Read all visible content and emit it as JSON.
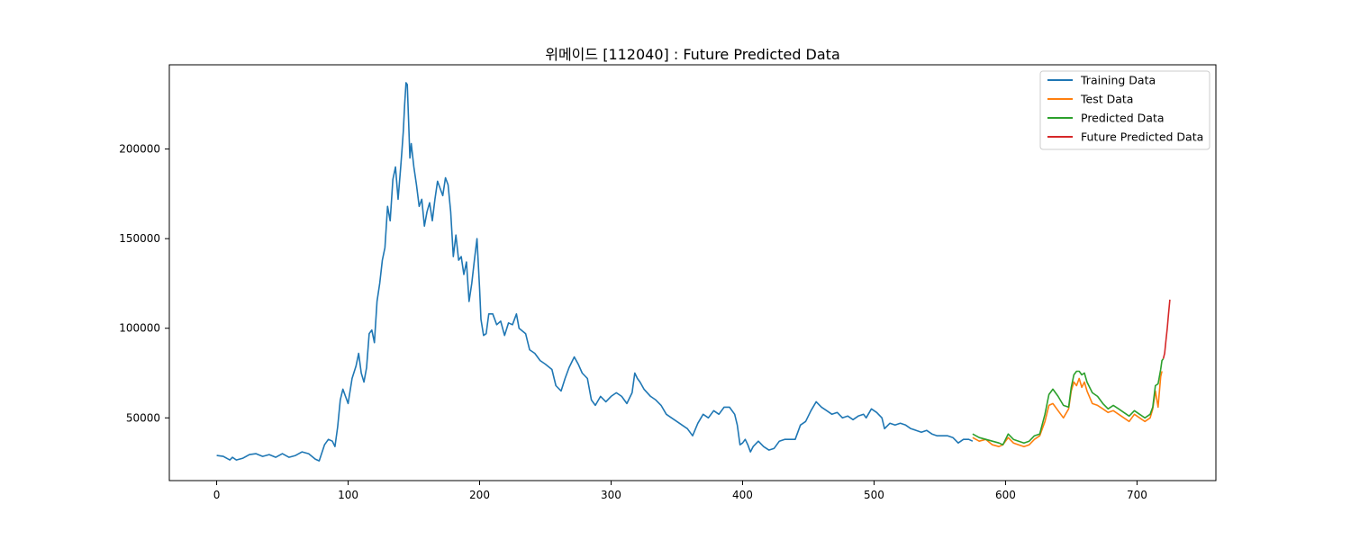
{
  "chart_data": {
    "type": "line",
    "title": "위메이드 [112040] : Future Predicted Data",
    "xlabel": "",
    "ylabel": "",
    "xlim": [
      -36,
      760
    ],
    "ylim": [
      15000,
      247000
    ],
    "x_ticks": [
      0,
      100,
      200,
      300,
      400,
      500,
      600,
      700
    ],
    "y_ticks": [
      50000,
      100000,
      150000,
      200000
    ],
    "grid": false,
    "legend_position": "upper right",
    "series": [
      {
        "name": "Training Data",
        "color": "#1f77b4",
        "points": [
          [
            0,
            29000
          ],
          [
            5,
            28500
          ],
          [
            10,
            26500
          ],
          [
            12,
            28000
          ],
          [
            15,
            26500
          ],
          [
            20,
            27500
          ],
          [
            25,
            29500
          ],
          [
            30,
            30000
          ],
          [
            35,
            28500
          ],
          [
            40,
            29500
          ],
          [
            45,
            28000
          ],
          [
            50,
            30000
          ],
          [
            55,
            28000
          ],
          [
            60,
            29000
          ],
          [
            65,
            31000
          ],
          [
            70,
            30000
          ],
          [
            75,
            27000
          ],
          [
            78,
            26000
          ],
          [
            82,
            35000
          ],
          [
            85,
            38000
          ],
          [
            88,
            37000
          ],
          [
            90,
            34000
          ],
          [
            92,
            45000
          ],
          [
            94,
            60000
          ],
          [
            96,
            66000
          ],
          [
            98,
            62000
          ],
          [
            100,
            58000
          ],
          [
            103,
            72000
          ],
          [
            106,
            79000
          ],
          [
            108,
            86000
          ],
          [
            110,
            75000
          ],
          [
            112,
            70000
          ],
          [
            114,
            78000
          ],
          [
            116,
            97000
          ],
          [
            118,
            99000
          ],
          [
            120,
            92000
          ],
          [
            122,
            115000
          ],
          [
            124,
            125000
          ],
          [
            126,
            138000
          ],
          [
            128,
            145000
          ],
          [
            130,
            168000
          ],
          [
            132,
            160000
          ],
          [
            134,
            183000
          ],
          [
            136,
            190000
          ],
          [
            138,
            172000
          ],
          [
            140,
            190000
          ],
          [
            141,
            200000
          ],
          [
            142,
            210000
          ],
          [
            143,
            225000
          ],
          [
            144,
            237000
          ],
          [
            145,
            236000
          ],
          [
            146,
            215000
          ],
          [
            147,
            195000
          ],
          [
            148,
            203000
          ],
          [
            150,
            190000
          ],
          [
            152,
            180000
          ],
          [
            154,
            168000
          ],
          [
            156,
            172000
          ],
          [
            158,
            157000
          ],
          [
            160,
            165000
          ],
          [
            162,
            170000
          ],
          [
            164,
            160000
          ],
          [
            166,
            172000
          ],
          [
            168,
            182000
          ],
          [
            170,
            178000
          ],
          [
            172,
            174000
          ],
          [
            174,
            184000
          ],
          [
            176,
            180000
          ],
          [
            178,
            165000
          ],
          [
            180,
            140000
          ],
          [
            182,
            152000
          ],
          [
            184,
            138000
          ],
          [
            186,
            140000
          ],
          [
            188,
            130000
          ],
          [
            190,
            137000
          ],
          [
            192,
            115000
          ],
          [
            194,
            125000
          ],
          [
            196,
            138000
          ],
          [
            198,
            150000
          ],
          [
            200,
            122000
          ],
          [
            201,
            105000
          ],
          [
            203,
            96000
          ],
          [
            205,
            97000
          ],
          [
            207,
            108000
          ],
          [
            210,
            108000
          ],
          [
            213,
            102000
          ],
          [
            216,
            104000
          ],
          [
            219,
            96000
          ],
          [
            222,
            103000
          ],
          [
            225,
            102000
          ],
          [
            228,
            108000
          ],
          [
            230,
            100000
          ],
          [
            235,
            97000
          ],
          [
            238,
            88000
          ],
          [
            242,
            86000
          ],
          [
            246,
            82000
          ],
          [
            250,
            80000
          ],
          [
            255,
            77000
          ],
          [
            258,
            68000
          ],
          [
            262,
            65000
          ],
          [
            265,
            72000
          ],
          [
            268,
            78000
          ],
          [
            272,
            84000
          ],
          [
            275,
            80000
          ],
          [
            278,
            75000
          ],
          [
            282,
            72000
          ],
          [
            285,
            60000
          ],
          [
            288,
            57000
          ],
          [
            292,
            62000
          ],
          [
            296,
            59000
          ],
          [
            300,
            62000
          ],
          [
            304,
            64000
          ],
          [
            308,
            62000
          ],
          [
            312,
            58000
          ],
          [
            316,
            64000
          ],
          [
            318,
            75000
          ],
          [
            320,
            72000
          ],
          [
            322,
            70000
          ],
          [
            325,
            66000
          ],
          [
            330,
            62000
          ],
          [
            334,
            60000
          ],
          [
            338,
            57000
          ],
          [
            342,
            52000
          ],
          [
            346,
            50000
          ],
          [
            350,
            48000
          ],
          [
            354,
            46000
          ],
          [
            358,
            44000
          ],
          [
            362,
            40000
          ],
          [
            366,
            47000
          ],
          [
            370,
            52000
          ],
          [
            374,
            50000
          ],
          [
            378,
            54000
          ],
          [
            382,
            52000
          ],
          [
            386,
            56000
          ],
          [
            390,
            56000
          ],
          [
            394,
            52000
          ],
          [
            396,
            46000
          ],
          [
            398,
            35000
          ],
          [
            400,
            36000
          ],
          [
            402,
            38000
          ],
          [
            404,
            35000
          ],
          [
            406,
            31000
          ],
          [
            408,
            34000
          ],
          [
            412,
            37000
          ],
          [
            416,
            34000
          ],
          [
            420,
            32000
          ],
          [
            424,
            33000
          ],
          [
            428,
            37000
          ],
          [
            432,
            38000
          ],
          [
            436,
            38000
          ],
          [
            440,
            38000
          ],
          [
            444,
            46000
          ],
          [
            448,
            48000
          ],
          [
            452,
            54000
          ],
          [
            456,
            59000
          ],
          [
            460,
            56000
          ],
          [
            464,
            54000
          ],
          [
            468,
            52000
          ],
          [
            472,
            53000
          ],
          [
            476,
            50000
          ],
          [
            480,
            51000
          ],
          [
            484,
            49000
          ],
          [
            488,
            51000
          ],
          [
            492,
            52000
          ],
          [
            494,
            50000
          ],
          [
            498,
            55000
          ],
          [
            502,
            53000
          ],
          [
            506,
            50000
          ],
          [
            508,
            44000
          ],
          [
            512,
            47000
          ],
          [
            516,
            46000
          ],
          [
            520,
            47000
          ],
          [
            524,
            46000
          ],
          [
            528,
            44000
          ],
          [
            532,
            43000
          ],
          [
            536,
            42000
          ],
          [
            540,
            43000
          ],
          [
            544,
            41000
          ],
          [
            548,
            40000
          ],
          [
            552,
            40000
          ],
          [
            556,
            40000
          ],
          [
            560,
            39000
          ],
          [
            564,
            36000
          ],
          [
            568,
            38000
          ],
          [
            572,
            38000
          ],
          [
            575,
            37000
          ]
        ]
      },
      {
        "name": "Test Data",
        "color": "#ff7f0e",
        "points": [
          [
            575,
            39000
          ],
          [
            580,
            37000
          ],
          [
            585,
            38000
          ],
          [
            590,
            35000
          ],
          [
            595,
            34000
          ],
          [
            598,
            35000
          ],
          [
            602,
            39000
          ],
          [
            606,
            36000
          ],
          [
            610,
            35000
          ],
          [
            614,
            34000
          ],
          [
            618,
            35000
          ],
          [
            622,
            38000
          ],
          [
            626,
            40000
          ],
          [
            630,
            48000
          ],
          [
            633,
            57000
          ],
          [
            636,
            58000
          ],
          [
            640,
            54000
          ],
          [
            644,
            50000
          ],
          [
            648,
            55000
          ],
          [
            650,
            65000
          ],
          [
            652,
            70000
          ],
          [
            654,
            68000
          ],
          [
            656,
            72000
          ],
          [
            658,
            67000
          ],
          [
            660,
            70000
          ],
          [
            662,
            65000
          ],
          [
            666,
            58000
          ],
          [
            670,
            57000
          ],
          [
            674,
            55000
          ],
          [
            678,
            53000
          ],
          [
            682,
            54000
          ],
          [
            686,
            52000
          ],
          [
            690,
            50000
          ],
          [
            694,
            48000
          ],
          [
            698,
            52000
          ],
          [
            702,
            50000
          ],
          [
            706,
            48000
          ],
          [
            710,
            50000
          ],
          [
            712,
            55000
          ],
          [
            714,
            65000
          ],
          [
            716,
            56000
          ],
          [
            718,
            73000
          ],
          [
            719,
            76000
          ]
        ]
      },
      {
        "name": "Predicted Data",
        "color": "#2ca02c",
        "points": [
          [
            575,
            41000
          ],
          [
            580,
            39000
          ],
          [
            585,
            38000
          ],
          [
            590,
            37000
          ],
          [
            595,
            36000
          ],
          [
            598,
            35000
          ],
          [
            602,
            41000
          ],
          [
            606,
            38000
          ],
          [
            610,
            37000
          ],
          [
            614,
            36000
          ],
          [
            618,
            37000
          ],
          [
            622,
            40000
          ],
          [
            626,
            41000
          ],
          [
            630,
            52000
          ],
          [
            633,
            63000
          ],
          [
            636,
            66000
          ],
          [
            640,
            62000
          ],
          [
            644,
            57000
          ],
          [
            648,
            56000
          ],
          [
            650,
            67000
          ],
          [
            652,
            74000
          ],
          [
            654,
            76000
          ],
          [
            656,
            76000
          ],
          [
            658,
            74000
          ],
          [
            660,
            75000
          ],
          [
            662,
            70000
          ],
          [
            666,
            64000
          ],
          [
            670,
            62000
          ],
          [
            674,
            58000
          ],
          [
            678,
            55000
          ],
          [
            682,
            57000
          ],
          [
            686,
            55000
          ],
          [
            690,
            53000
          ],
          [
            694,
            51000
          ],
          [
            698,
            54000
          ],
          [
            702,
            52000
          ],
          [
            706,
            50000
          ],
          [
            710,
            52000
          ],
          [
            712,
            56000
          ],
          [
            714,
            68000
          ],
          [
            716,
            69000
          ],
          [
            718,
            77000
          ],
          [
            719,
            82000
          ],
          [
            720,
            83000
          ]
        ]
      },
      {
        "name": "Future Predicted Data",
        "color": "#d62728",
        "points": [
          [
            720,
            83000
          ],
          [
            721,
            86000
          ],
          [
            722,
            93000
          ],
          [
            723,
            100000
          ],
          [
            724,
            108000
          ],
          [
            725,
            116000
          ]
        ]
      }
    ]
  }
}
